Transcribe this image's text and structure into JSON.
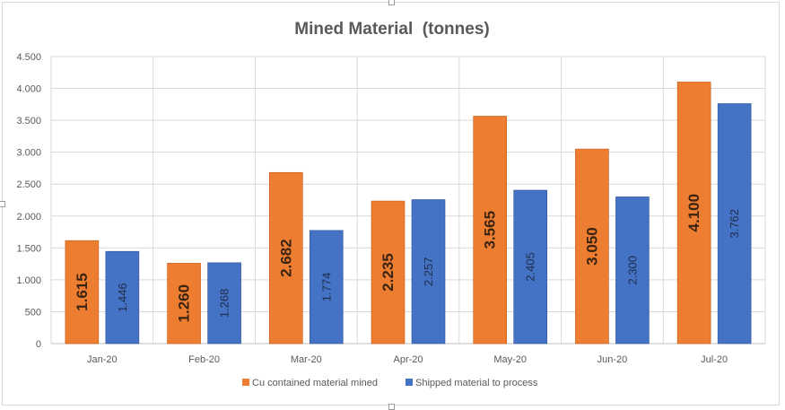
{
  "chart_data": {
    "type": "bar",
    "title": "Mined Material  (tonnes)",
    "xlabel": "",
    "ylabel": "",
    "categories": [
      "Jan-20",
      "Feb-20",
      "Mar-20",
      "Apr-20",
      "May-20",
      "Jun-20",
      "Jul-20"
    ],
    "series": [
      {
        "name": "Cu contained material mined",
        "color": "#ED7D31",
        "values": [
          1615,
          1260,
          2682,
          2235,
          3565,
          3050,
          4100
        ],
        "labels": [
          "1.615",
          "1.260",
          "2.682",
          "2.235",
          "3.565",
          "3.050",
          "4.100"
        ]
      },
      {
        "name": "Shipped material to process",
        "color": "#4472C4",
        "values": [
          1446,
          1268,
          1774,
          2257,
          2405,
          2300,
          3762
        ],
        "labels": [
          "1.446",
          "1.268",
          "1.774",
          "2.257",
          "2.405",
          "2.300",
          "3.762"
        ]
      }
    ],
    "ylim": [
      0,
      4500
    ],
    "yticks": [
      0,
      500,
      1000,
      1500,
      2000,
      2500,
      3000,
      3500,
      4000,
      4500
    ],
    "ytick_labels": [
      "0",
      "500",
      "1.000",
      "1.500",
      "2.000",
      "2.500",
      "3.000",
      "3.500",
      "4.000",
      "4.500"
    ],
    "grid": true,
    "legend_position": "bottom"
  }
}
